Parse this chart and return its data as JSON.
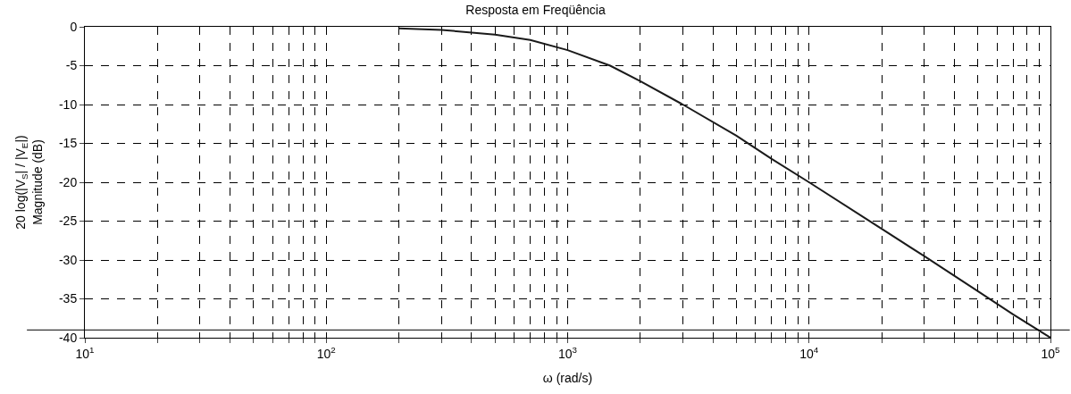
{
  "chart_data": {
    "type": "line",
    "title": "Resposta em Freqüência",
    "xlabel": "ω (rad/s)",
    "ylabel": "20 log(|V$_{S}$| / |V$_{E}$|)\nMagnitude (dB)",
    "x": [
      200,
      300,
      500,
      700,
      1000,
      1500,
      2000,
      3000,
      5000,
      7000,
      10000,
      20000,
      30000,
      50000,
      70000,
      100000
    ],
    "series": [
      {
        "color": "#1a1a1a",
        "values": [
          -0.2,
          -0.4,
          -1,
          -1.7,
          -3,
          -5,
          -7,
          -10,
          -14,
          -17,
          -20,
          -26,
          -29.5,
          -34,
          -37,
          -40
        ]
      }
    ],
    "log": "x",
    "xlim": [
      10,
      100000
    ],
    "ylim": [
      -40,
      0
    ],
    "xticks": [
      {
        "value": 10,
        "label": "10$^{1}$"
      },
      {
        "value": 20,
        "label": null
      },
      {
        "value": 30,
        "label": null
      },
      {
        "value": 40,
        "label": null
      },
      {
        "value": 50,
        "label": null
      },
      {
        "value": 60,
        "label": null
      },
      {
        "value": 70,
        "label": null
      },
      {
        "value": 80,
        "label": null
      },
      {
        "value": 90,
        "label": null
      },
      {
        "value": 100,
        "label": "10$^{2}$"
      },
      {
        "value": 200,
        "label": null
      },
      {
        "value": 300,
        "label": null
      },
      {
        "value": 400,
        "label": null
      },
      {
        "value": 500,
        "label": null
      },
      {
        "value": 600,
        "label": null
      },
      {
        "value": 700,
        "label": null
      },
      {
        "value": 800,
        "label": null
      },
      {
        "value": 900,
        "label": null
      },
      {
        "value": 1000,
        "label": "10$^{3}$"
      },
      {
        "value": 2000,
        "label": null
      },
      {
        "value": 3000,
        "label": null
      },
      {
        "value": 4000,
        "label": null
      },
      {
        "value": 5000,
        "label": null
      },
      {
        "value": 6000,
        "label": null
      },
      {
        "value": 7000,
        "label": null
      },
      {
        "value": 8000,
        "label": null
      },
      {
        "value": 9000,
        "label": null
      },
      {
        "value": 10000,
        "label": "10$^{4}$"
      },
      {
        "value": 20000,
        "label": null
      },
      {
        "value": 30000,
        "label": null
      },
      {
        "value": 40000,
        "label": null
      },
      {
        "value": 50000,
        "label": null
      },
      {
        "value": 60000,
        "label": null
      },
      {
        "value": 70000,
        "label": null
      },
      {
        "value": 80000,
        "label": null
      },
      {
        "value": 90000,
        "label": null
      },
      {
        "value": 100000,
        "label": "10$^{5}$"
      }
    ],
    "yticks": [
      0,
      -5,
      -10,
      -15,
      -20,
      -25,
      -30,
      -35,
      -40
    ],
    "grid": true,
    "line_style": "solid",
    "marker": "none",
    "ref_lines": [
      {
        "axis": "y",
        "value": -39,
        "color": "#000000"
      }
    ]
  }
}
